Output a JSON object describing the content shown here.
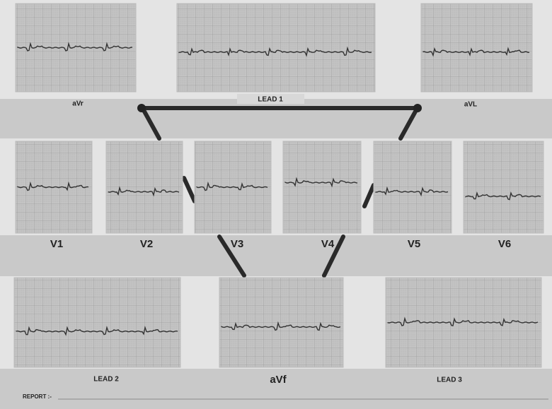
{
  "lead_labels": {
    "top": [
      "aVr",
      "LEAD 1",
      "aVL"
    ],
    "chest": [
      "V1",
      "V2",
      "V3",
      "V4",
      "V5",
      "V6"
    ],
    "bottom": [
      "LEAD 2",
      "aVf",
      "LEAD 3"
    ]
  },
  "report_label": "REPORT :-"
}
